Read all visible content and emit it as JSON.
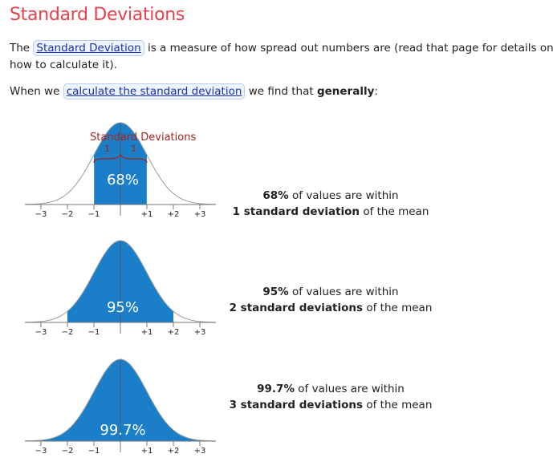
{
  "page_title": "Standard Deviations",
  "intro": {
    "before": "The ",
    "link": "Standard Deviation",
    "after": " is a measure of how spread out numbers are (read that page for details on how to calculate it)."
  },
  "when": {
    "before": "When we ",
    "link": "calculate the standard deviation",
    "middle": " we find that ",
    "bold": "generally",
    "after": ":"
  },
  "charts": [
    {
      "percent": "68%",
      "sd_range": 1,
      "brace_title": "Standard Deviations",
      "brace_labels": [
        "1",
        "1"
      ],
      "axis_labels": [
        "−3",
        "−2",
        "−1",
        "+1",
        "+2",
        "+3"
      ],
      "caption_line1_bold": "68%",
      "caption_line1_rest": " of values are within",
      "caption_line2_bold": "1 standard deviation",
      "caption_line2_rest": " of the mean"
    },
    {
      "percent": "95%",
      "sd_range": 2,
      "axis_labels": [
        "−3",
        "−2",
        "−1",
        "+1",
        "+2",
        "+3"
      ],
      "caption_line1_bold": "95%",
      "caption_line1_rest": " of values are within",
      "caption_line2_bold": "2 standard deviations",
      "caption_line2_rest": " of the mean"
    },
    {
      "percent": "99.7%",
      "sd_range": 3,
      "axis_labels": [
        "−3",
        "−2",
        "−1",
        "+1",
        "+2",
        "+3"
      ],
      "caption_line1_bold": "99.7%",
      "caption_line1_rest": " of values are within",
      "caption_line2_bold": "3 standard deviations",
      "caption_line2_rest": " of the mean"
    }
  ],
  "colors": {
    "fill": "#1a7fc8",
    "brace": "#a6241c",
    "title": "#e8414a",
    "link": "#1a2fb0"
  }
}
